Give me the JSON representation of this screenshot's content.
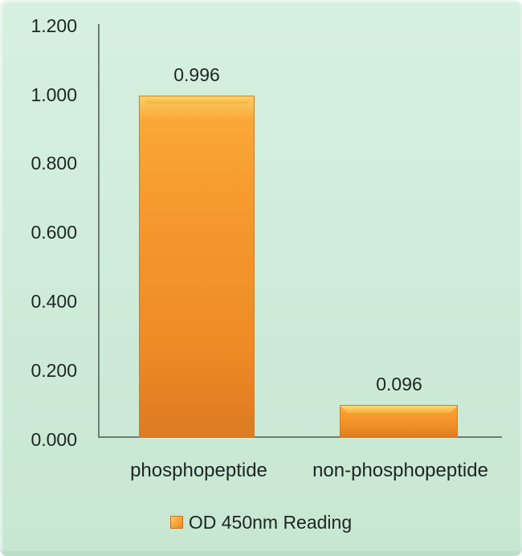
{
  "chart_data": {
    "type": "bar",
    "title": "",
    "categories": [
      "phosphopeptide",
      "non-phosphopeptide"
    ],
    "series": [
      {
        "name": "OD 450nm Reading",
        "values": [
          0.996,
          0.096
        ]
      }
    ],
    "value_labels": [
      "0.996",
      "0.096"
    ],
    "y_tick_labels": [
      "1.200",
      "1.000",
      "0.800",
      "0.600",
      "0.400",
      "0.200",
      "0.000"
    ],
    "ylim": [
      0,
      1.2
    ],
    "y_tick_step": 0.2,
    "xlabel": "",
    "ylabel": "",
    "grid": false,
    "legend_position": "bottom-center",
    "colors": {
      "bar_top": "#fbce63",
      "bar_mid": "#f79a2e",
      "bar_bottom": "#dd7b22",
      "bar_border": "#d9791f",
      "background": "#cfecda",
      "axis": "#6f7d72",
      "text": "#1c2620"
    }
  }
}
